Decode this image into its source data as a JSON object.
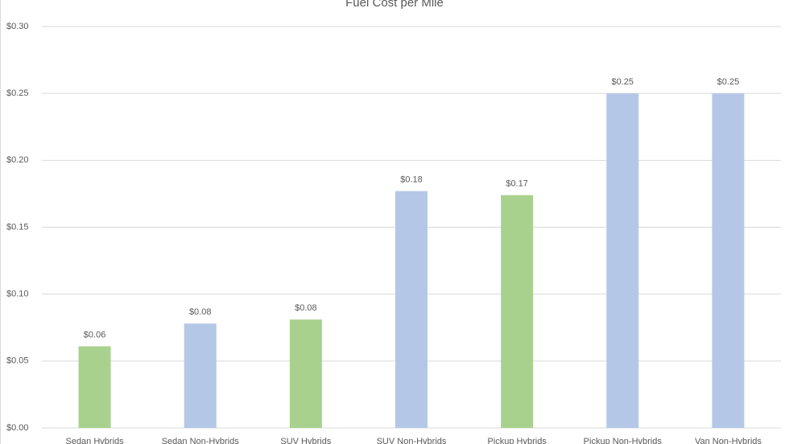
{
  "chart_data": {
    "type": "bar",
    "title": "Fuel Cost per Mile",
    "categories": [
      "Sedan Hybrids",
      "Sedan Non-Hybrids",
      "SUV Hybrids",
      "SUV Non-Hybrids",
      "Pickup Hybrids",
      "Pickup Non-Hybrids",
      "Van Non-Hybrids"
    ],
    "values": [
      0.061,
      0.078,
      0.081,
      0.177,
      0.174,
      0.25,
      0.25
    ],
    "value_labels": [
      "$0.06",
      "$0.08",
      "$0.08",
      "$0.18",
      "$0.17",
      "$0.25",
      "$0.25"
    ],
    "colors": [
      "#a9d18e",
      "#b4c7e7",
      "#a9d18e",
      "#b4c7e7",
      "#a9d18e",
      "#b4c7e7",
      "#b4c7e7"
    ],
    "ylim": [
      0,
      0.3
    ],
    "yticks": [
      {
        "value": 0,
        "label": "$0.00"
      },
      {
        "value": 0.05,
        "label": "$0.05"
      },
      {
        "value": 0.1,
        "label": "$0.10"
      },
      {
        "value": 0.15,
        "label": "$0.15"
      },
      {
        "value": 0.2,
        "label": "$0.20"
      },
      {
        "value": 0.25,
        "label": "$0.25"
      },
      {
        "value": 0.3,
        "label": "$0.30"
      }
    ],
    "grid": true
  }
}
